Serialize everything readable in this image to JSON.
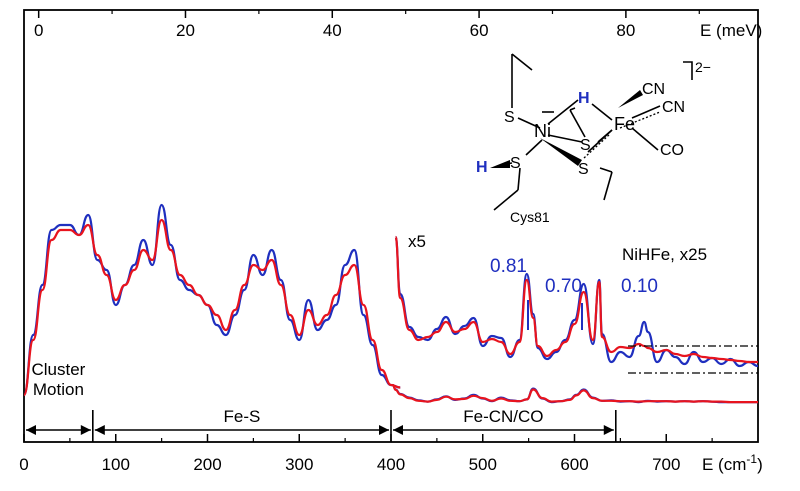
{
  "chart_data": {
    "type": "line",
    "title": "",
    "xlabel_bottom": "E (cm⁻¹)",
    "xlabel_bottom_base": "E (cm",
    "xlabel_bottom_sup": "-1",
    "xlabel_bottom_close": ")",
    "xlabel_top": "E (meV)",
    "xlim_cm": [
      0,
      800
    ],
    "xlim_meV": [
      -2,
      98
    ],
    "xticks_bottom": [
      0,
      100,
      200,
      300,
      400,
      500,
      600,
      700
    ],
    "xticks_top": [
      0,
      20,
      40,
      60,
      80
    ],
    "grid": false,
    "colors": {
      "blue": "#1f2fbf",
      "red": "#e8141e",
      "axis": "#000000"
    },
    "series": [
      {
        "color": "blue",
        "segment": "full-spectrum",
        "x": [
          0,
          10,
          20,
          30,
          40,
          50,
          60,
          70,
          80,
          90,
          100,
          110,
          120,
          130,
          140,
          150,
          160,
          170,
          180,
          190,
          200,
          210,
          220,
          230,
          240,
          250,
          260,
          270,
          280,
          290,
          300,
          310,
          320,
          330,
          340,
          350,
          360,
          370,
          380,
          390,
          400,
          410
        ],
        "y": [
          0,
          12,
          22,
          33,
          34,
          34,
          32,
          36,
          27,
          25,
          18,
          22,
          26,
          31,
          26,
          38,
          30,
          23,
          21,
          20,
          18,
          14,
          12,
          16,
          21,
          28,
          24,
          29,
          23,
          15,
          11,
          19,
          13,
          15,
          18,
          26,
          29,
          16,
          10,
          4,
          2,
          1.5
        ]
      },
      {
        "color": "red",
        "segment": "full-spectrum",
        "x": [
          0,
          10,
          20,
          30,
          40,
          50,
          60,
          70,
          80,
          90,
          100,
          110,
          120,
          130,
          140,
          150,
          160,
          170,
          180,
          190,
          200,
          210,
          220,
          230,
          240,
          250,
          260,
          270,
          280,
          290,
          300,
          310,
          320,
          330,
          340,
          350,
          360,
          370,
          380,
          390,
          400,
          410
        ],
        "y": [
          0,
          11,
          21,
          31,
          33,
          33,
          32,
          34,
          28,
          24,
          19,
          22,
          25,
          29,
          27,
          35,
          29,
          24,
          22,
          20,
          18,
          16,
          13,
          17,
          22,
          26,
          25,
          27,
          22,
          16,
          12,
          17,
          14,
          16,
          20,
          24,
          26,
          18,
          11,
          5,
          2,
          1.5
        ]
      },
      {
        "color": "blue",
        "segment": "x5",
        "x": [
          402,
          405,
          410,
          420,
          430,
          440,
          450,
          460,
          470,
          480,
          490,
          500,
          510,
          520,
          530,
          540,
          548,
          555,
          565,
          575,
          585,
          595,
          602,
          610,
          620,
          630,
          640,
          650,
          660,
          670,
          680,
          690,
          700,
          710,
          720,
          730,
          740,
          750,
          760,
          770,
          780,
          790,
          800
        ],
        "y": [
          40,
          30,
          20,
          12,
          6,
          3,
          8,
          15,
          7,
          10,
          18,
          10,
          4,
          12,
          6,
          4,
          8,
          32,
          10,
          2,
          4,
          8,
          18,
          30,
          12,
          5,
          6,
          3,
          4,
          2,
          5,
          3,
          4,
          3,
          4,
          3,
          4,
          3,
          2,
          2,
          2,
          2,
          2
        ]
      },
      {
        "color": "red",
        "segment": "x5",
        "x": [
          402,
          405,
          410,
          420,
          430,
          440,
          450,
          460,
          470,
          480,
          490,
          500,
          510,
          520,
          530,
          540,
          548,
          555,
          565,
          575,
          585,
          595,
          602,
          610,
          620,
          630,
          640,
          650,
          660,
          670,
          680,
          690,
          700,
          710,
          720,
          730,
          740,
          750,
          760,
          770,
          780,
          790,
          800
        ],
        "y": [
          40,
          29,
          19,
          11,
          5,
          3,
          7,
          14,
          8,
          9,
          16,
          11,
          5,
          10,
          5,
          4,
          8,
          30,
          11,
          3,
          4,
          7,
          17,
          28,
          11,
          5,
          5,
          4,
          4,
          3,
          4,
          4,
          4,
          3,
          4,
          3,
          4,
          3,
          3,
          2,
          2,
          2,
          2
        ]
      },
      {
        "color": "blue",
        "segment": "NiHFe, x25",
        "x": [
          405,
          410,
          420,
          430,
          440,
          450,
          460,
          470,
          480,
          490,
          500,
          510,
          520,
          530,
          540,
          548,
          555,
          560,
          570,
          580,
          590,
          600,
          610,
          620,
          627,
          630,
          640,
          650,
          660,
          670,
          676,
          680,
          690,
          700,
          710,
          720,
          730,
          740,
          750,
          760,
          770,
          780,
          790,
          800
        ],
        "y": [
          155,
          98,
          65,
          55,
          52,
          63,
          75,
          58,
          66,
          74,
          46,
          56,
          54,
          35,
          52,
          118,
          78,
          44,
          33,
          40,
          52,
          72,
          108,
          48,
          112,
          58,
          30,
          40,
          35,
          56,
          70,
          60,
          30,
          42,
          35,
          28,
          40,
          30,
          34,
          28,
          33,
          26,
          30,
          26
        ]
      },
      {
        "color": "red",
        "segment": "NiHFe, x25",
        "x": [
          405,
          410,
          420,
          430,
          440,
          450,
          460,
          470,
          480,
          490,
          500,
          510,
          520,
          530,
          540,
          548,
          555,
          560,
          570,
          580,
          590,
          600,
          610,
          620,
          627,
          630,
          640,
          650,
          660,
          670,
          676,
          680,
          690,
          700,
          710,
          720,
          730,
          740,
          750,
          760,
          770,
          780,
          790,
          800
        ],
        "y": [
          155,
          94,
          62,
          52,
          55,
          60,
          70,
          60,
          63,
          70,
          50,
          53,
          50,
          38,
          50,
          112,
          74,
          46,
          36,
          42,
          50,
          68,
          100,
          52,
          110,
          55,
          40,
          45,
          44,
          48,
          46,
          44,
          40,
          42,
          38,
          36,
          38,
          35,
          34,
          33,
          32,
          31,
          30,
          30
        ]
      }
    ],
    "annotations": {
      "x5": "x5",
      "nihfe": "NiHFe, x25",
      "v1": "0.81",
      "v2": "0.70",
      "v3": "0.10"
    },
    "regions": [
      {
        "label_lines": [
          "Cluster",
          "Motion"
        ],
        "from": 0,
        "to": 75
      },
      {
        "label_lines": [
          "Fe-S"
        ],
        "from": 75,
        "to": 400
      },
      {
        "label_lines": [
          "Fe-CN/CO"
        ],
        "from": 400,
        "to": 645
      }
    ]
  },
  "structure": {
    "charge": "2−",
    "ni": "Ni",
    "fe": "Fe",
    "s1": "S",
    "s2": "S",
    "s3": "S",
    "s4": "S",
    "h1": "H",
    "h2": "H",
    "cn1": "CN",
    "cn2": "CN",
    "co": "CO",
    "residue": "Cys81",
    "minus": "−"
  }
}
